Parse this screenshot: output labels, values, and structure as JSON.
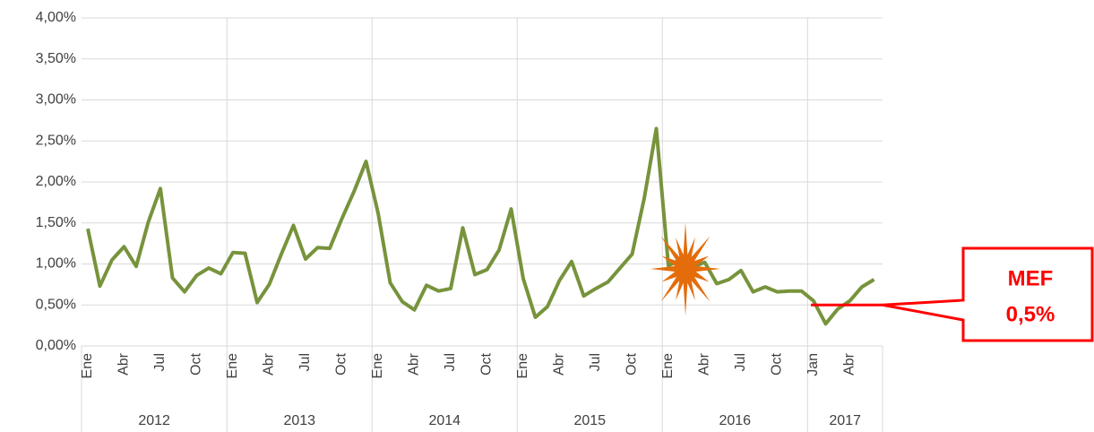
{
  "chart_data": {
    "type": "line",
    "categories": [
      "Ene",
      null,
      null,
      "Abr",
      null,
      null,
      "Jul",
      null,
      null,
      "Oct",
      null,
      null,
      "Ene",
      null,
      null,
      "Abr",
      null,
      null,
      "Jul",
      null,
      null,
      "Oct",
      null,
      null,
      "Ene",
      null,
      null,
      "Abr",
      null,
      null,
      "Jul",
      null,
      null,
      "Oct",
      null,
      null,
      "Ene",
      null,
      null,
      "Abr",
      null,
      null,
      "Jul",
      null,
      null,
      "Oct",
      null,
      null,
      "Ene",
      null,
      null,
      "Abr",
      null,
      null,
      "Jul",
      null,
      null,
      "Oct",
      null,
      null,
      "Jan",
      null,
      null,
      "Abr",
      null,
      null
    ],
    "years": [
      "2012",
      "2013",
      "2014",
      "2015",
      "2016",
      "2017"
    ],
    "series": [
      {
        "color": "#77933c",
        "values": [
          1.43,
          0.73,
          1.05,
          1.21,
          0.97,
          1.51,
          1.92,
          0.83,
          0.66,
          0.86,
          0.95,
          0.88,
          1.14,
          1.13,
          0.53,
          0.75,
          1.12,
          1.47,
          1.06,
          1.2,
          1.19,
          1.55,
          1.88,
          2.25,
          1.62,
          0.77,
          0.54,
          0.44,
          0.74,
          0.67,
          0.7,
          1.44,
          0.87,
          0.93,
          1.17,
          1.67,
          0.82,
          0.35,
          0.48,
          0.8,
          1.03,
          0.61,
          0.7,
          0.78,
          0.95,
          1.12,
          1.8,
          2.65,
          0.98,
          1.05,
          0.96,
          1.02,
          0.76,
          0.81,
          0.92,
          0.66,
          0.72,
          0.66,
          0.67,
          0.67,
          0.55,
          0.27,
          0.45,
          0.55,
          0.72,
          0.81
        ]
      }
    ],
    "ylim": [
      0,
      4
    ],
    "yticks": [
      {
        "value": 0,
        "label": "0,00%"
      },
      {
        "value": 0.5,
        "label": "0,50%"
      },
      {
        "value": 1,
        "label": "1,00%"
      },
      {
        "value": 1.5,
        "label": "1,50%"
      },
      {
        "value": 2,
        "label": "2,00%"
      },
      {
        "value": 2.5,
        "label": "2,50%"
      },
      {
        "value": 3,
        "label": "3,00%"
      },
      {
        "value": 3.5,
        "label": "3,50%"
      },
      {
        "value": 4,
        "label": "4,00%"
      }
    ],
    "grid": true,
    "threshold": {
      "name": "MEF",
      "value": 0.5,
      "label": "0,5%",
      "color": "#ff0000"
    }
  }
}
